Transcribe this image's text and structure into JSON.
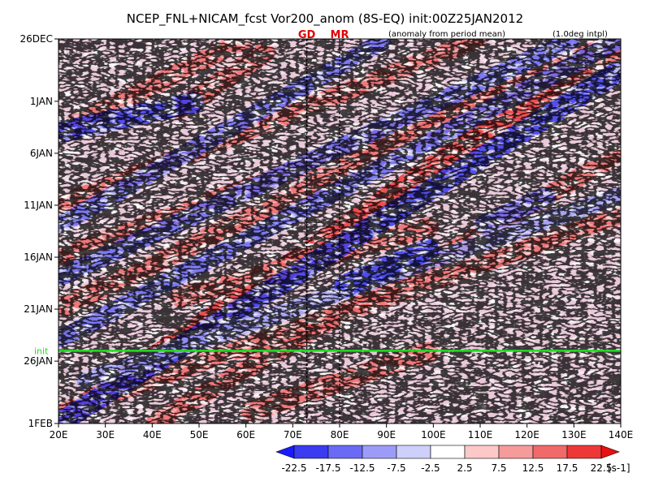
{
  "chart_data": {
    "type": "heatmap",
    "title": "NCEP_FNL+NICAM_fcst Vor200_anom (8S-EQ) init:00Z25JAN2012",
    "subtitle_left": "(anomaly from period mean)",
    "subtitle_right": "(1.0deg intpl)",
    "x_axis": {
      "range": [
        20,
        140
      ],
      "tick_values": [
        20,
        30,
        40,
        50,
        60,
        70,
        80,
        90,
        100,
        110,
        120,
        130,
        140
      ],
      "tick_labels": [
        "20E",
        "30E",
        "40E",
        "50E",
        "60E",
        "70E",
        "80E",
        "90E",
        "100E",
        "110E",
        "120E",
        "130E",
        "140E"
      ]
    },
    "y_axis": {
      "range": [
        "2011-12-26",
        "2012-02-01"
      ],
      "tick_values": [
        "2011-12-26",
        "2012-01-01",
        "2012-01-06",
        "2012-01-11",
        "2012-01-16",
        "2012-01-21",
        "2012-01-26",
        "2012-02-01"
      ],
      "tick_labels": [
        "26DEC",
        "1JAN",
        "6JAN",
        "11JAN",
        "16JAN",
        "21JAN",
        "26JAN",
        "1FEB"
      ]
    },
    "markers": [
      {
        "label": "GD",
        "lon": 73,
        "color": "#e00000"
      },
      {
        "label": "MR",
        "lon": 80,
        "color": "#e00000"
      }
    ],
    "init_line": {
      "label": "init",
      "date": "2012-01-25",
      "color": "#22dd22"
    },
    "features": [
      {
        "from": [
          "2012-02-01",
          20
        ],
        "to": [
          "2011-12-26",
          140
        ],
        "value": 20
      },
      {
        "from": [
          "2012-01-21",
          20
        ],
        "to": [
          "2011-12-26",
          140
        ],
        "value": 16
      },
      {
        "from": [
          "2012-01-16",
          20
        ],
        "to": [
          "2011-12-27",
          140
        ],
        "value": 14
      },
      {
        "from": [
          "2012-01-11",
          20
        ],
        "to": [
          "2011-12-26",
          110
        ],
        "value": 14
      },
      {
        "from": [
          "2012-02-01",
          40
        ],
        "to": [
          "2012-01-06",
          140
        ],
        "value": 14
      },
      {
        "from": [
          "2012-01-31",
          20
        ],
        "to": [
          "2012-01-12",
          140
        ],
        "value": 13
      },
      {
        "from": [
          "2012-01-04",
          20
        ],
        "to": [
          "2011-12-26",
          60
        ],
        "value": 15
      },
      {
        "from": [
          "2012-01-02",
          45
        ],
        "to": [
          "2011-12-27",
          65
        ],
        "value": 17
      },
      {
        "from": [
          "2012-01-20",
          45
        ],
        "to": [
          "2012-01-13",
          100
        ],
        "value": 16
      },
      {
        "from": [
          "2012-01-31",
          60
        ],
        "to": [
          "2012-01-25",
          100
        ],
        "value": 17
      },
      {
        "from": [
          "2012-02-01",
          20
        ],
        "to": [
          "2011-12-29",
          140
        ],
        "value": -18
      },
      {
        "from": [
          "2012-01-24",
          20
        ],
        "to": [
          "2011-12-26",
          140
        ],
        "value": -14
      },
      {
        "from": [
          "2012-01-18",
          20
        ],
        "to": [
          "2011-12-26",
          130
        ],
        "value": -14
      },
      {
        "from": [
          "2012-01-13",
          20
        ],
        "to": [
          "2011-12-26",
          90
        ],
        "value": -13
      },
      {
        "from": [
          "2012-01-28",
          25
        ],
        "to": [
          "2012-01-10",
          140
        ],
        "value": -12
      },
      {
        "from": [
          "2012-01-04",
          20
        ],
        "to": [
          "2012-01-01",
          50
        ],
        "value": -18
      },
      {
        "from": [
          "2012-01-19",
          80
        ],
        "to": [
          "2012-01-15",
          100
        ],
        "value": -20
      },
      {
        "from": [
          "2012-01-13",
          110
        ],
        "to": [
          "2012-01-10",
          125
        ],
        "value": -15
      }
    ],
    "colorbar": {
      "levels": [
        -22.5,
        -17.5,
        -12.5,
        -7.5,
        -2.5,
        2.5,
        7.5,
        12.5,
        17.5,
        22.5
      ],
      "tick_labels": [
        "-22.5",
        "-17.5",
        "-12.5",
        "-7.5",
        "-2.5",
        "2.5",
        "7.5",
        "12.5",
        "17.5",
        "22.5"
      ],
      "colors": [
        "#1a1aff",
        "#3b3bf0",
        "#6a6af5",
        "#9c9cf8",
        "#cfcffc",
        "#ffffff",
        "#fcc8c8",
        "#f79a9a",
        "#f06a6a",
        "#ee3838",
        "#e81010"
      ],
      "unit": "[s-1]"
    },
    "grid": false
  }
}
